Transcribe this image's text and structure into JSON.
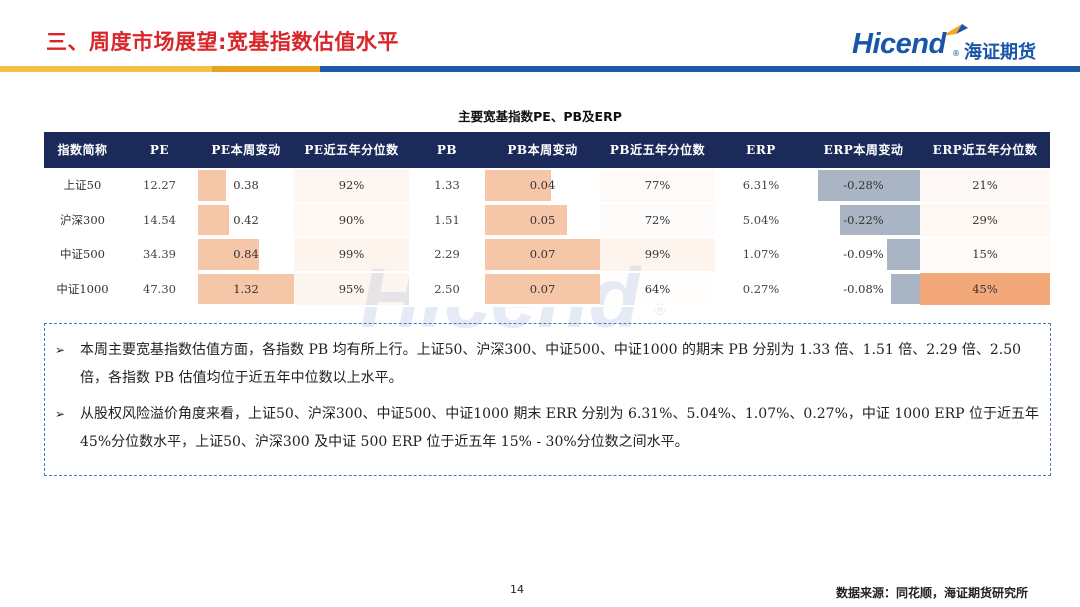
{
  "header": {
    "title": "三、周度市场展望:宽基指数估值水平",
    "logo_en": "Hicend",
    "logo_reg": "®",
    "logo_cn": "海证期货"
  },
  "table": {
    "title": "主要宽基指数PE、PB及ERP",
    "columns": [
      "指数简称",
      "PE",
      "PE本周变动",
      "PE近五年分位数",
      "PB",
      "PB本周变动",
      "PB近五年分位数",
      "ERP",
      "ERP本周变动",
      "ERP近五年分位数"
    ],
    "rows": [
      {
        "name": "上证50",
        "pe": "12.27",
        "pe_chg": "0.38",
        "pe_chg_v": 0.38,
        "pe_pct": "92%",
        "pb": "1.33",
        "pb_chg": "0.04",
        "pb_chg_v": 0.04,
        "pb_pct": "77%",
        "erp": "6.31%",
        "erp_chg": "-0.28%",
        "erp_chg_v": -0.28,
        "erp_pct": "21%"
      },
      {
        "name": "沪深300",
        "pe": "14.54",
        "pe_chg": "0.42",
        "pe_chg_v": 0.42,
        "pe_pct": "90%",
        "pb": "1.51",
        "pb_chg": "0.05",
        "pb_chg_v": 0.05,
        "pb_pct": "72%",
        "erp": "5.04%",
        "erp_chg": "-0.22%",
        "erp_chg_v": -0.22,
        "erp_pct": "29%"
      },
      {
        "name": "中证500",
        "pe": "34.39",
        "pe_chg": "0.84",
        "pe_chg_v": 0.84,
        "pe_pct": "99%",
        "pb": "2.29",
        "pb_chg": "0.07",
        "pb_chg_v": 0.07,
        "pb_pct": "99%",
        "erp": "1.07%",
        "erp_chg": "-0.09%",
        "erp_chg_v": -0.09,
        "erp_pct": "15%"
      },
      {
        "name": "中证1000",
        "pe": "47.30",
        "pe_chg": "1.32",
        "pe_chg_v": 1.32,
        "pe_pct": "95%",
        "pb": "2.50",
        "pb_chg": "0.07",
        "pb_chg_v": 0.07,
        "pb_pct": "64%",
        "erp": "0.27%",
        "erp_chg": "-0.08%",
        "erp_chg_v": -0.08,
        "erp_pct": "45%"
      }
    ]
  },
  "watermark": {
    "text": "Hicend",
    "reg": "®"
  },
  "notes": {
    "bullets": [
      "本周主要宽基指数估值方面，各指数 PB 均有所上行。上证50、沪深300、中证500、中证1000 的期末 PB 分别为 1.33 倍、1.51 倍、2.29 倍、2.50 倍，各指数 PB 估值均位于近五年中位数以上水平。",
      "从股权风险溢价角度来看，上证50、沪深300、中证500、中证1000 期末 ERR 分别为 6.31%、5.04%、1.07%、0.27%，中证 1000 ERP 位于近五年 45%分位数水平，上证50、沪深300 及中证 500 ERP 位于近五年 15% - 30%分位数之间水平。"
    ]
  },
  "footer": {
    "page": "14",
    "source": "数据来源：同花顺，海证期货研究所"
  },
  "colors": {
    "title_red": "#d9262b",
    "header_navy": "#1c2a5a",
    "pos_bar": "#f6c6a8",
    "neg_bar": "#a9b4c4",
    "brand_blue": "#1a56a8",
    "brand_orange": "#f5a623"
  }
}
